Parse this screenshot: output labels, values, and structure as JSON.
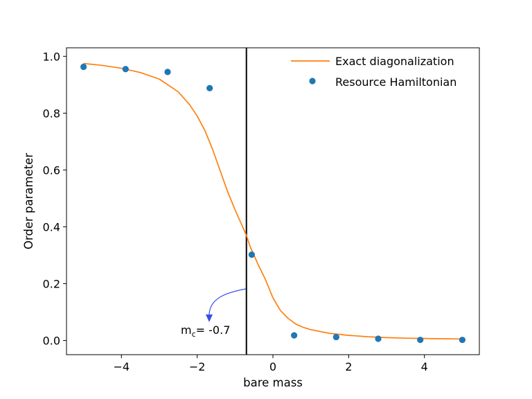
{
  "chart_data": {
    "type": "line+scatter",
    "xlabel": "bare mass",
    "ylabel": "Order parameter",
    "xlim": [
      -5.45,
      5.45
    ],
    "ylim": [
      -0.05,
      1.03
    ],
    "x_ticks": [
      -4,
      -2,
      0,
      2,
      4
    ],
    "x_tick_labels": [
      "−4",
      "−2",
      "0",
      "2",
      "4"
    ],
    "y_ticks": [
      0.0,
      0.2,
      0.4,
      0.6,
      0.8,
      1.0
    ],
    "y_tick_labels": [
      "0.0",
      "0.2",
      "0.4",
      "0.6",
      "0.8",
      "1.0"
    ],
    "grid": false,
    "legend_position": "top-right",
    "series": [
      {
        "name": "Exact diagonalization",
        "kind": "line",
        "color": "#ff7f0e",
        "x": [
          -5.0,
          -4.5,
          -4.0,
          -3.5,
          -3.0,
          -2.5,
          -2.2,
          -2.0,
          -1.8,
          -1.6,
          -1.4,
          -1.2,
          -1.0,
          -0.8,
          -0.7,
          -0.6,
          -0.4,
          -0.2,
          0.0,
          0.2,
          0.4,
          0.6,
          0.8,
          1.0,
          1.5,
          2.0,
          2.5,
          3.0,
          3.5,
          4.0,
          4.5,
          5.0
        ],
        "y": [
          0.975,
          0.968,
          0.958,
          0.943,
          0.92,
          0.875,
          0.83,
          0.79,
          0.74,
          0.675,
          0.6,
          0.525,
          0.46,
          0.4,
          0.37,
          0.33,
          0.27,
          0.215,
          0.15,
          0.105,
          0.078,
          0.058,
          0.046,
          0.038,
          0.025,
          0.018,
          0.013,
          0.01,
          0.008,
          0.007,
          0.006,
          0.005
        ]
      },
      {
        "name": "Resource Hamiltonian",
        "kind": "scatter",
        "color": "#1f77b4",
        "x": [
          -5.0,
          -3.89,
          -2.78,
          -1.67,
          -0.56,
          0.56,
          1.67,
          2.78,
          3.89,
          5.0
        ],
        "y": [
          0.963,
          0.955,
          0.945,
          0.888,
          0.302,
          0.018,
          0.012,
          0.006,
          0.002,
          0.002
        ]
      }
    ],
    "vline": {
      "x": -0.7,
      "color": "#000000"
    },
    "annotation": {
      "text_main": "m",
      "text_sub": "c",
      "text_rest": "= -0.7",
      "arrow_color": "#3a4ee8"
    }
  }
}
